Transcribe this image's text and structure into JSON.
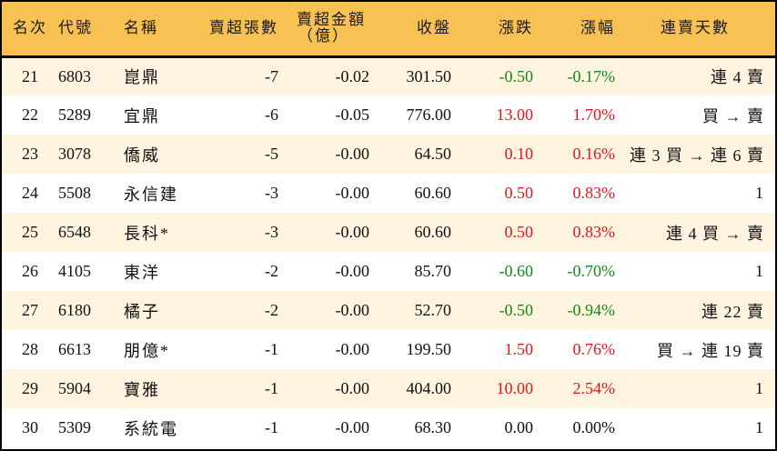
{
  "table": {
    "headers": {
      "rank": "名次",
      "code": "代號",
      "name": "名稱",
      "net_sell_lots": "賣超張數",
      "net_sell_amount_line1": "賣超金額",
      "net_sell_amount_line2": "（億）",
      "close": "收盤",
      "change": "漲跌",
      "change_pct": "漲幅",
      "streak": "連賣天數"
    },
    "colors": {
      "header_bg": "#F8C154",
      "odd_row_bg": "#FEF4E0",
      "even_row_bg": "#FFFFFF",
      "up": "#E8141A",
      "down": "#138A14"
    },
    "rows": [
      {
        "rank": "21",
        "code": "6803",
        "name": "崑鼎",
        "lots": "-7",
        "amount": "-0.02",
        "close": "301.50",
        "change": "-0.50",
        "pct": "-0.17%",
        "dir": "neg",
        "streak": "連 4 賣"
      },
      {
        "rank": "22",
        "code": "5289",
        "name": "宜鼎",
        "lots": "-6",
        "amount": "-0.05",
        "close": "776.00",
        "change": "13.00",
        "pct": "1.70%",
        "dir": "pos",
        "streak": "買 → 賣"
      },
      {
        "rank": "23",
        "code": "3078",
        "name": "僑威",
        "lots": "-5",
        "amount": "-0.00",
        "close": "64.50",
        "change": "0.10",
        "pct": "0.16%",
        "dir": "pos",
        "streak": "連 3 買 → 連 6 賣"
      },
      {
        "rank": "24",
        "code": "5508",
        "name": "永信建",
        "lots": "-3",
        "amount": "-0.00",
        "close": "60.60",
        "change": "0.50",
        "pct": "0.83%",
        "dir": "pos",
        "streak": "1"
      },
      {
        "rank": "25",
        "code": "6548",
        "name": "長科*",
        "lots": "-3",
        "amount": "-0.00",
        "close": "60.60",
        "change": "0.50",
        "pct": "0.83%",
        "dir": "pos",
        "streak": "連 4 買 → 賣"
      },
      {
        "rank": "26",
        "code": "4105",
        "name": "東洋",
        "lots": "-2",
        "amount": "-0.00",
        "close": "85.70",
        "change": "-0.60",
        "pct": "-0.70%",
        "dir": "neg",
        "streak": "1"
      },
      {
        "rank": "27",
        "code": "6180",
        "name": "橘子",
        "lots": "-2",
        "amount": "-0.00",
        "close": "52.70",
        "change": "-0.50",
        "pct": "-0.94%",
        "dir": "neg",
        "streak": "連 22 賣"
      },
      {
        "rank": "28",
        "code": "6613",
        "name": "朋億*",
        "lots": "-1",
        "amount": "-0.00",
        "close": "199.50",
        "change": "1.50",
        "pct": "0.76%",
        "dir": "pos",
        "streak": "買 → 連 19 賣"
      },
      {
        "rank": "29",
        "code": "5904",
        "name": "寶雅",
        "lots": "-1",
        "amount": "-0.00",
        "close": "404.00",
        "change": "10.00",
        "pct": "2.54%",
        "dir": "pos",
        "streak": "1"
      },
      {
        "rank": "30",
        "code": "5309",
        "name": "系統電",
        "lots": "-1",
        "amount": "-0.00",
        "close": "68.30",
        "change": "0.00",
        "pct": "0.00%",
        "dir": "flat",
        "streak": "1"
      }
    ]
  }
}
